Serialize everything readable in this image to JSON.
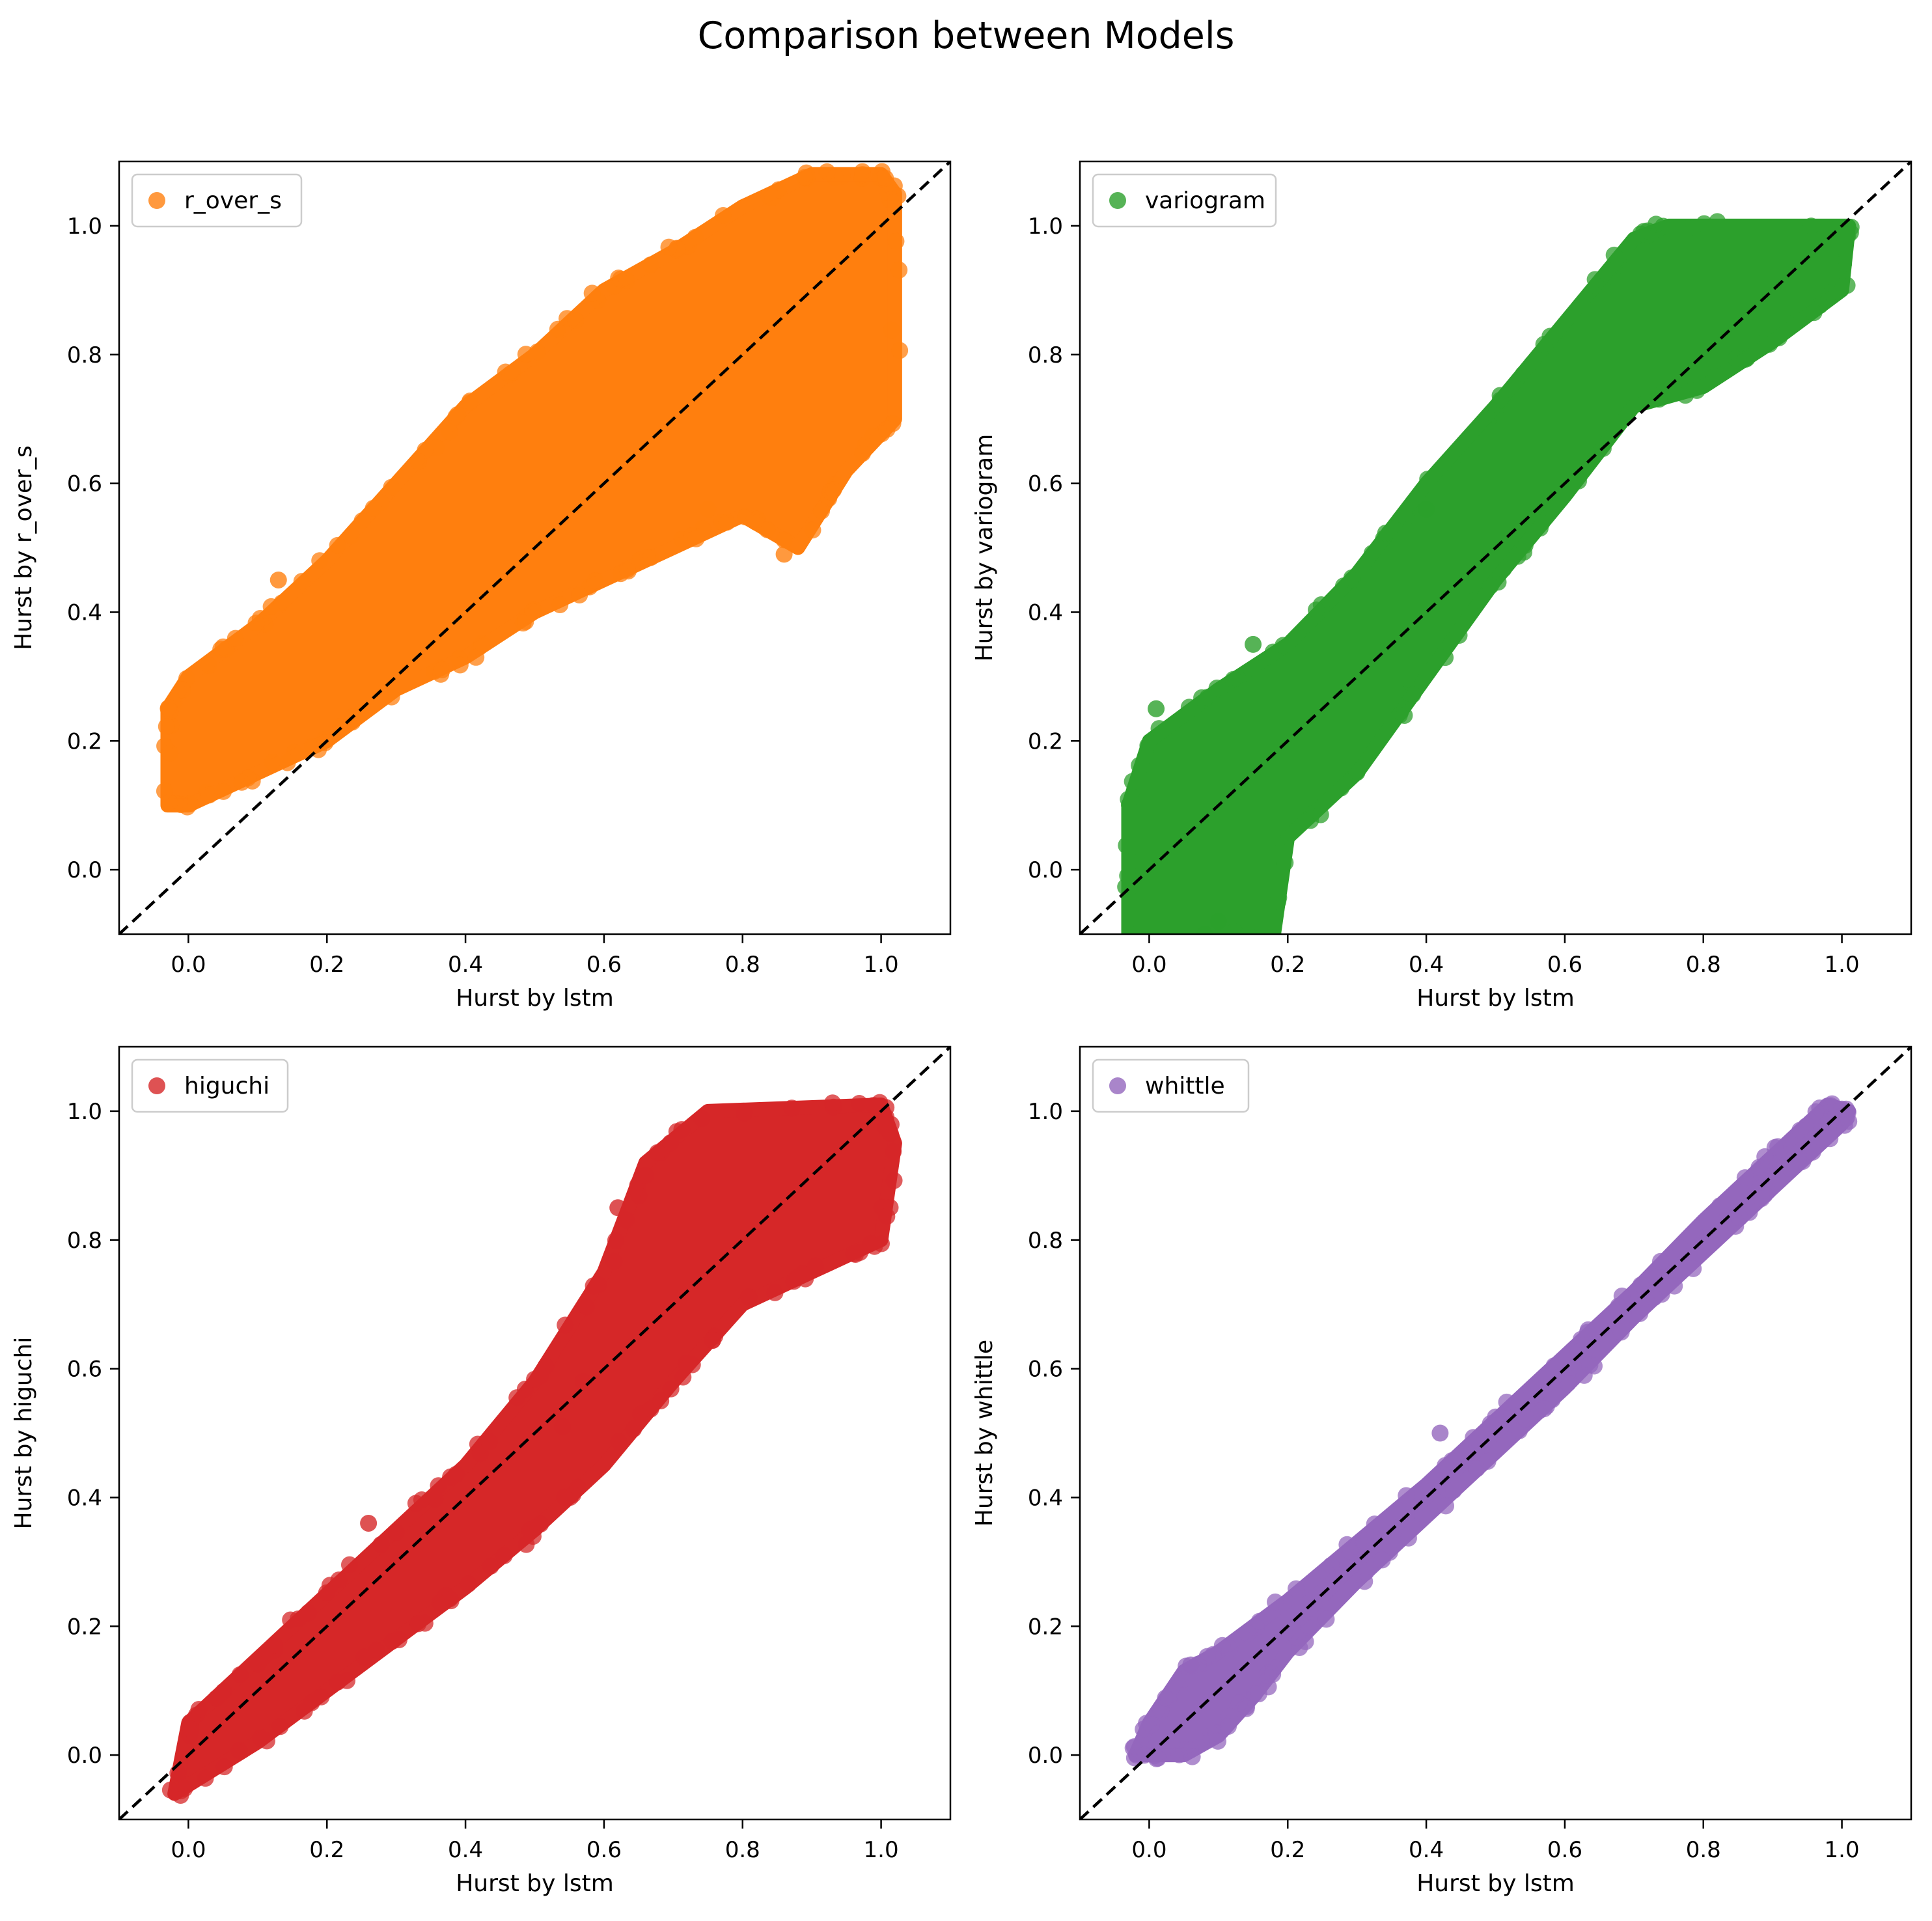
{
  "figure": {
    "title": "Comparison between Models"
  },
  "chart_data": [
    {
      "type": "scatter",
      "series": [
        {
          "name": "r_over_s",
          "color": "#ff7f0e"
        }
      ],
      "xlabel": "Hurst by lstm",
      "ylabel": "Hurst by r_over_s",
      "xlim": [
        -0.1,
        1.1
      ],
      "ylim": [
        -0.1,
        1.1
      ],
      "xticks": [
        "0.0",
        "0.2",
        "0.4",
        "0.6",
        "0.8",
        "1.0"
      ],
      "yticks": [
        "0.0",
        "0.2",
        "0.4",
        "0.6",
        "0.8",
        "1.0"
      ],
      "reference_line": {
        "style": "dashed",
        "color": "#000000",
        "y_equals_x": true
      },
      "legend": "top-left",
      "grid": false,
      "point_cloud_outline": [
        [
          -0.03,
          0.1
        ],
        [
          0.0,
          0.1
        ],
        [
          0.1,
          0.15
        ],
        [
          0.2,
          0.2
        ],
        [
          0.3,
          0.28
        ],
        [
          0.4,
          0.33
        ],
        [
          0.5,
          0.4
        ],
        [
          0.6,
          0.45
        ],
        [
          0.7,
          0.5
        ],
        [
          0.8,
          0.55
        ],
        [
          0.88,
          0.5
        ],
        [
          0.95,
          0.62
        ],
        [
          1.02,
          0.7
        ],
        [
          1.02,
          1.05
        ],
        [
          1.0,
          1.08
        ],
        [
          0.9,
          1.08
        ],
        [
          0.8,
          1.03
        ],
        [
          0.7,
          0.96
        ],
        [
          0.6,
          0.9
        ],
        [
          0.5,
          0.8
        ],
        [
          0.4,
          0.72
        ],
        [
          0.3,
          0.6
        ],
        [
          0.2,
          0.48
        ],
        [
          0.1,
          0.38
        ],
        [
          0.0,
          0.3
        ],
        [
          -0.03,
          0.25
        ]
      ],
      "outliers": [
        [
          0.86,
          0.49
        ],
        [
          0.13,
          0.45
        ],
        [
          0.75,
          0.56
        ]
      ]
    },
    {
      "type": "scatter",
      "series": [
        {
          "name": "variogram",
          "color": "#2ca02c"
        }
      ],
      "xlabel": "Hurst by lstm",
      "ylabel": "Hurst by variogram",
      "xlim": [
        -0.1,
        1.1
      ],
      "ylim": [
        -0.1,
        1.1
      ],
      "xticks": [
        "0.0",
        "0.2",
        "0.4",
        "0.6",
        "0.8",
        "1.0"
      ],
      "yticks": [
        "0.0",
        "0.2",
        "0.4",
        "0.6",
        "0.8",
        "1.0"
      ],
      "reference_line": {
        "style": "dashed",
        "color": "#000000",
        "y_equals_x": true
      },
      "legend": "top-left",
      "grid": false,
      "point_cloud_outline": [
        [
          -0.03,
          -0.1
        ],
        [
          0.18,
          -0.1
        ],
        [
          0.2,
          0.05
        ],
        [
          0.3,
          0.15
        ],
        [
          0.4,
          0.3
        ],
        [
          0.5,
          0.45
        ],
        [
          0.6,
          0.58
        ],
        [
          0.7,
          0.72
        ],
        [
          0.8,
          0.75
        ],
        [
          0.9,
          0.82
        ],
        [
          1.0,
          0.9
        ],
        [
          1.01,
          1.0
        ],
        [
          0.75,
          1.0
        ],
        [
          0.7,
          0.98
        ],
        [
          0.6,
          0.85
        ],
        [
          0.5,
          0.72
        ],
        [
          0.4,
          0.6
        ],
        [
          0.3,
          0.46
        ],
        [
          0.2,
          0.35
        ],
        [
          0.1,
          0.28
        ],
        [
          0.0,
          0.2
        ],
        [
          -0.03,
          0.1
        ]
      ],
      "outliers": [
        [
          0.15,
          0.35
        ],
        [
          0.1,
          -0.08
        ],
        [
          0.08,
          -0.1
        ],
        [
          0.01,
          0.25
        ],
        [
          0.4,
          0.56
        ]
      ]
    },
    {
      "type": "scatter",
      "series": [
        {
          "name": "higuchi",
          "color": "#d62728"
        }
      ],
      "xlabel": "Hurst by lstm",
      "ylabel": "Hurst by higuchi",
      "xlim": [
        -0.1,
        1.1
      ],
      "ylim": [
        -0.1,
        1.1
      ],
      "xticks": [
        "0.0",
        "0.2",
        "0.4",
        "0.6",
        "0.8",
        "1.0"
      ],
      "yticks": [
        "0.0",
        "0.2",
        "0.4",
        "0.6",
        "0.8",
        "1.0"
      ],
      "reference_line": {
        "style": "dashed",
        "color": "#000000",
        "y_equals_x": true
      },
      "legend": "top-left",
      "grid": false,
      "point_cloud_outline": [
        [
          -0.02,
          -0.06
        ],
        [
          0.1,
          0.02
        ],
        [
          0.2,
          0.1
        ],
        [
          0.3,
          0.18
        ],
        [
          0.4,
          0.26
        ],
        [
          0.5,
          0.35
        ],
        [
          0.6,
          0.45
        ],
        [
          0.7,
          0.58
        ],
        [
          0.8,
          0.7
        ],
        [
          0.9,
          0.75
        ],
        [
          1.0,
          0.8
        ],
        [
          1.02,
          0.95
        ],
        [
          1.0,
          1.01
        ],
        [
          0.75,
          1.0
        ],
        [
          0.66,
          0.92
        ],
        [
          0.6,
          0.75
        ],
        [
          0.5,
          0.58
        ],
        [
          0.4,
          0.45
        ],
        [
          0.3,
          0.35
        ],
        [
          0.2,
          0.25
        ],
        [
          0.1,
          0.15
        ],
        [
          0.0,
          0.05
        ]
      ],
      "outliers": [
        [
          0.62,
          0.85
        ],
        [
          0.66,
          0.9
        ],
        [
          0.57,
          0.58
        ],
        [
          0.54,
          0.51
        ],
        [
          0.26,
          0.36
        ]
      ]
    },
    {
      "type": "scatter",
      "series": [
        {
          "name": "whittle",
          "color": "#9467bd"
        }
      ],
      "xlabel": "Hurst by lstm",
      "ylabel": "Hurst by whittle",
      "xlim": [
        -0.1,
        1.1
      ],
      "ylim": [
        -0.1,
        1.1
      ],
      "xticks": [
        "0.0",
        "0.2",
        "0.4",
        "0.6",
        "0.8",
        "1.0"
      ],
      "yticks": [
        "0.0",
        "0.2",
        "0.4",
        "0.6",
        "0.8",
        "1.0"
      ],
      "reference_line": {
        "style": "dashed",
        "color": "#000000",
        "y_equals_x": true
      },
      "legend": "top-left",
      "grid": false,
      "point_cloud_outline": [
        [
          -0.02,
          0.0
        ],
        [
          0.05,
          0.0
        ],
        [
          0.1,
          0.03
        ],
        [
          0.15,
          0.09
        ],
        [
          0.2,
          0.16
        ],
        [
          0.3,
          0.27
        ],
        [
          0.4,
          0.37
        ],
        [
          0.5,
          0.47
        ],
        [
          0.6,
          0.57
        ],
        [
          0.7,
          0.68
        ],
        [
          0.8,
          0.78
        ],
        [
          0.9,
          0.88
        ],
        [
          1.0,
          0.98
        ],
        [
          1.01,
          1.0
        ],
        [
          0.98,
          1.01
        ],
        [
          0.9,
          0.93
        ],
        [
          0.8,
          0.83
        ],
        [
          0.7,
          0.72
        ],
        [
          0.6,
          0.62
        ],
        [
          0.5,
          0.52
        ],
        [
          0.4,
          0.42
        ],
        [
          0.3,
          0.33
        ],
        [
          0.2,
          0.24
        ],
        [
          0.1,
          0.16
        ],
        [
          0.05,
          0.13
        ],
        [
          0.0,
          0.05
        ]
      ],
      "outliers": [
        [
          0.06,
          0.14
        ],
        [
          0.42,
          0.5
        ]
      ]
    }
  ]
}
